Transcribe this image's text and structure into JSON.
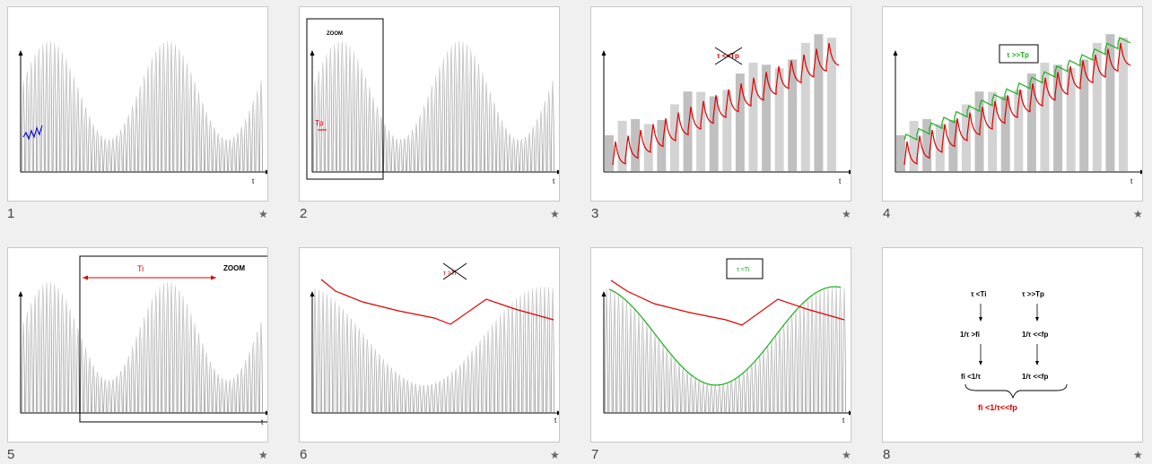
{
  "slides": [
    {
      "number": "1",
      "star": "★",
      "axis_label": "t",
      "chart_data": {
        "type": "line",
        "title": "",
        "series": [
          {
            "name": "",
            "values": []
          }
        ],
        "description_visible_text": []
      }
    },
    {
      "number": "2",
      "star": "★",
      "axis_label": "t",
      "zoom_label": "ZOOM",
      "tp_label": "Tp"
    },
    {
      "number": "3",
      "star": "★",
      "axis_label": "t",
      "tau_label": "τ <<Tp"
    },
    {
      "number": "4",
      "star": "★",
      "axis_label": "t",
      "tau_label": "τ >>Tp"
    },
    {
      "number": "5",
      "star": "★",
      "axis_label": "t",
      "ti_label": "Ti",
      "zoom_label": "ZOOM"
    },
    {
      "number": "6",
      "star": "★",
      "axis_label": "t",
      "tau_label": "τ >Ti"
    },
    {
      "number": "7",
      "star": "★",
      "axis_label": "t",
      "tau_label": "τ <Ti"
    },
    {
      "number": "8",
      "star": "★",
      "col1": [
        "τ <Ti",
        "1/τ >fi",
        "fi <1/τ"
      ],
      "col2": [
        "τ >>Tp",
        "1/τ <<fp",
        "1/τ <<fp"
      ],
      "result": "fi <1/τ<<fp"
    }
  ],
  "colors": {
    "red": "#e00000",
    "green": "#18b018",
    "blue": "#1010d0",
    "signal": "#9a9a9a"
  }
}
